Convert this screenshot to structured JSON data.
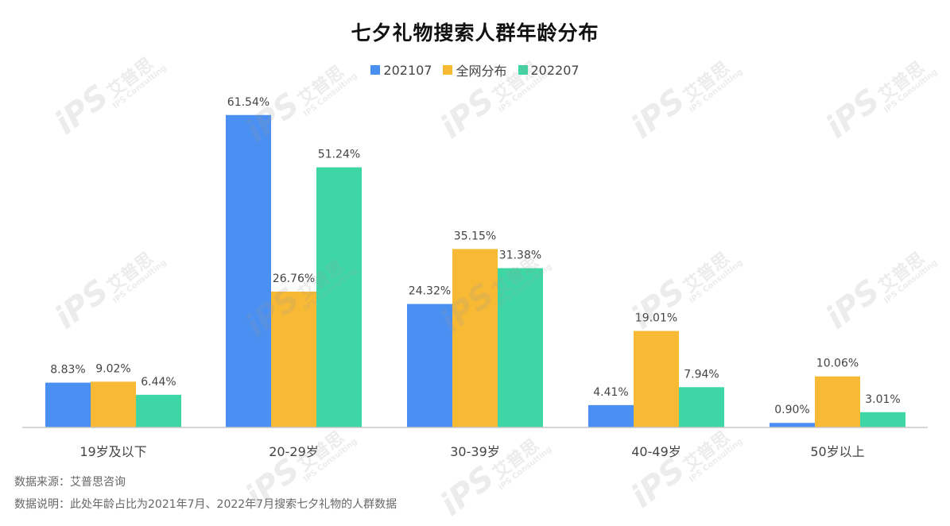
{
  "chart_data": {
    "type": "bar",
    "title": "七夕礼物搜索人群年龄分布",
    "categories": [
      "19岁及以下",
      "20-29岁",
      "30-39岁",
      "40-49岁",
      "50岁以上"
    ],
    "series": [
      {
        "name": "202107",
        "color": "#4a8ff2",
        "values": [
          8.83,
          61.54,
          24.32,
          4.41,
          0.9
        ],
        "labels": [
          "8.83%",
          "61.54%",
          "24.32%",
          "4.41%",
          "0.90%"
        ]
      },
      {
        "name": "全网分布",
        "color": "#f8b935",
        "values": [
          9.02,
          26.76,
          35.15,
          19.01,
          10.06
        ],
        "labels": [
          "9.02%",
          "26.76%",
          "35.15%",
          "19.01%",
          "10.06%"
        ]
      },
      {
        "name": "202207",
        "color": "#3fd6a5",
        "values": [
          6.44,
          51.24,
          31.38,
          7.94,
          3.01
        ],
        "labels": [
          "6.44%",
          "51.24%",
          "31.38%",
          "7.94%",
          "3.01%"
        ]
      }
    ],
    "unit": "%",
    "legend_position": "top-center",
    "grid": false
  },
  "footnotes": {
    "source": "数据来源：艾普思咨询",
    "explain": "数据说明：此处年龄占比为2021年7月、2022年7月搜索七夕礼物的人群数据"
  },
  "watermark": {
    "logo": "iPS",
    "cn": "艾普思",
    "en": "IPS Consulting"
  }
}
